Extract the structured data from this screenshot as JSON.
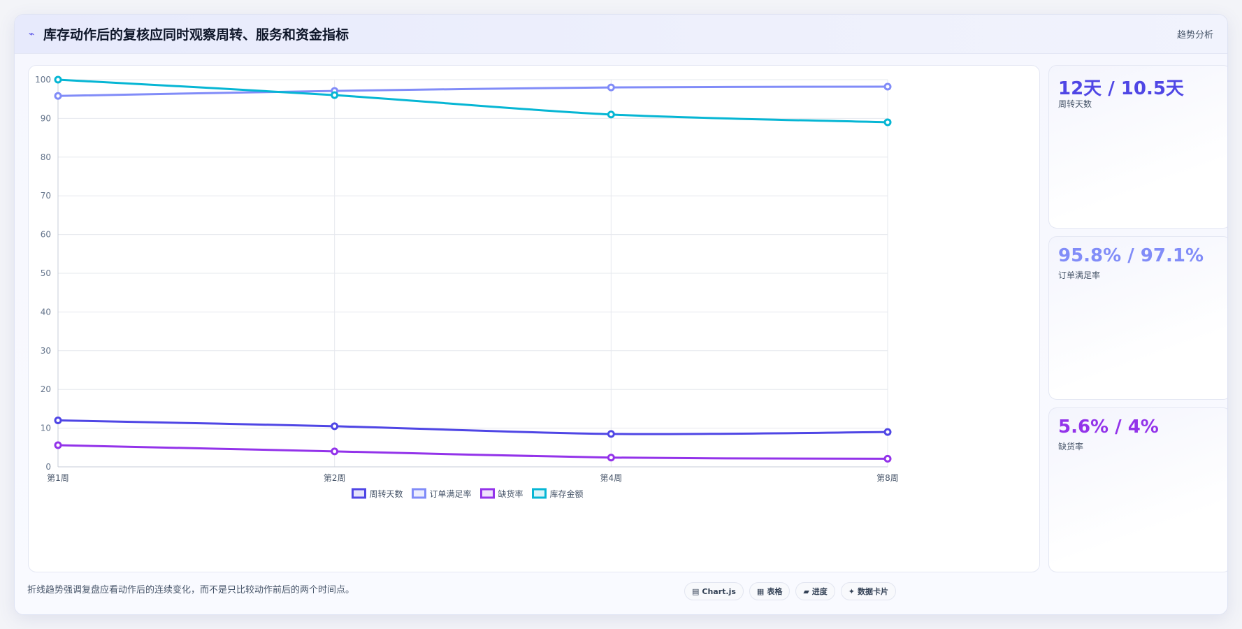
{
  "header": {
    "title_icon": "⌁",
    "title": "库存动作后的复核应同时观察周转、服务和资金指标",
    "tag": "趋势分析"
  },
  "stats": [
    {
      "value": "12天 / 10.5天",
      "label": "周转天数",
      "color": "#4f46e5"
    },
    {
      "value": "95.8% / 97.1%",
      "label": "订单满足率",
      "color": "#818cf8"
    },
    {
      "value": "5.6% / 4%",
      "label": "缺货率",
      "color": "#9333ea"
    }
  ],
  "footnote": "折线趋势强调复盘应看动作后的连续变化，而不是只比较动作前后的两个时间点。",
  "chips": [
    {
      "icon": "▤",
      "label": "Chart.js"
    },
    {
      "icon": "▦",
      "label": "表格"
    },
    {
      "icon": "▰",
      "label": "进度"
    },
    {
      "icon": "✦",
      "label": "数据卡片"
    }
  ],
  "chart_data": {
    "type": "line",
    "categories": [
      "第1周",
      "第2周",
      "第4周",
      "第8周"
    ],
    "ylim": [
      0,
      100
    ],
    "yticks": [
      0,
      10,
      20,
      30,
      40,
      50,
      60,
      70,
      80,
      90,
      100
    ],
    "grid": true,
    "legend_position": "bottom",
    "series": [
      {
        "name": "周转天数",
        "color": "#4f46e5",
        "values": [
          12,
          10.5,
          8.5,
          9
        ]
      },
      {
        "name": "订单满足率",
        "color": "#818cf8",
        "values": [
          95.8,
          97.1,
          98,
          98.2
        ]
      },
      {
        "name": "缺货率",
        "color": "#9333ea",
        "values": [
          5.6,
          4,
          2.4,
          2.1
        ]
      },
      {
        "name": "库存金额",
        "color": "#06b6d4",
        "values": [
          100,
          96,
          91,
          89
        ]
      }
    ]
  }
}
